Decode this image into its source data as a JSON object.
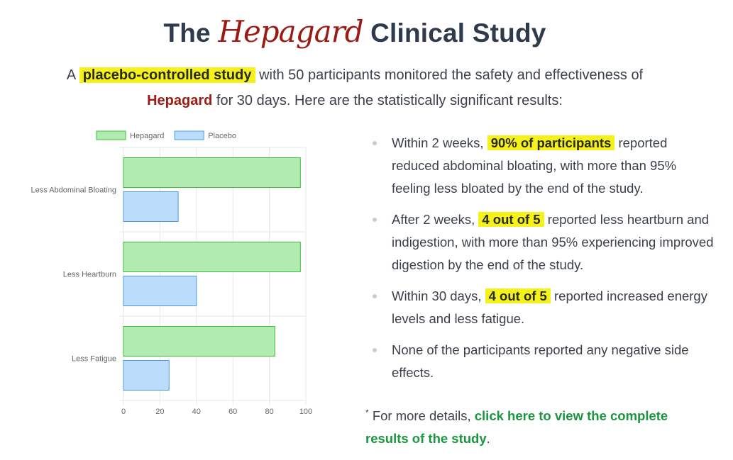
{
  "header": {
    "title_pre": "The",
    "brand": "Hepagard",
    "title_post": "Clinical Study"
  },
  "intro": {
    "pre": "A",
    "highlight": "placebo-controlled study",
    "mid": "with 50 participants monitored the safety and effectiveness of",
    "brand": "Hepagard",
    "post": "for 30 days. Here are the statistically significant results:"
  },
  "results": [
    {
      "pre": "Within 2 weeks,",
      "highlight": "90% of participants",
      "post": "reported reduced abdominal bloating, with more than 95% feeling less bloated by the end of the study."
    },
    {
      "pre": "After 2 weeks,",
      "highlight": "4 out of 5",
      "post": "reported less heartburn and indigestion, with more than 95% experiencing improved digestion by the end of the study."
    },
    {
      "pre": "Within 30 days,",
      "highlight": "4 out of 5",
      "post": "reported increased energy levels and less fatigue."
    },
    {
      "pre": "None of the participants reported any negative side effects.",
      "highlight": "",
      "post": ""
    }
  ],
  "footnote": {
    "marker": "*",
    "pre": "For more details,",
    "link": "click here to view the complete results of the study",
    "post": "."
  },
  "colors": {
    "brand": "#9b1b14",
    "highlight": "#f5f21a",
    "link": "#19963f",
    "hepagard_fill": "#b2ebb0",
    "hepagard_border": "#3cbf3c",
    "placebo_fill": "#bcdcfb",
    "placebo_border": "#4a9be0"
  },
  "chart_data": {
    "type": "bar",
    "orientation": "horizontal",
    "categories": [
      "Less Abdominal Bloating",
      "Less Heartburn",
      "Less Fatigue"
    ],
    "series": [
      {
        "name": "Hepagard",
        "values": [
          97,
          97,
          83
        ]
      },
      {
        "name": "Placebo",
        "values": [
          30,
          40,
          25
        ]
      }
    ],
    "xlim": [
      0,
      100
    ],
    "xticks": [
      0,
      20,
      40,
      60,
      80,
      100
    ],
    "grid": true,
    "legend": "top"
  }
}
